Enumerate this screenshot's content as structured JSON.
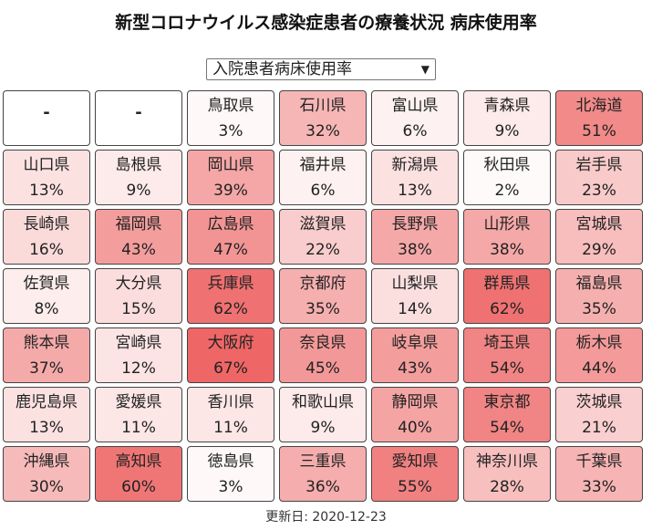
{
  "title": "新型コロナウイルス感染症患者の療養状況 病床使用率",
  "select": {
    "selected": "入院患者病床使用率"
  },
  "updated": "更新日: 2020-12-23",
  "cells": [
    {
      "name": "-",
      "pct": "",
      "value": null
    },
    {
      "name": "-",
      "pct": "",
      "value": null
    },
    {
      "name": "鳥取県",
      "pct": "3%",
      "value": 3
    },
    {
      "name": "石川県",
      "pct": "32%",
      "value": 32
    },
    {
      "name": "富山県",
      "pct": "6%",
      "value": 6
    },
    {
      "name": "青森県",
      "pct": "9%",
      "value": 9
    },
    {
      "name": "北海道",
      "pct": "51%",
      "value": 51
    },
    {
      "name": "山口県",
      "pct": "13%",
      "value": 13
    },
    {
      "name": "島根県",
      "pct": "9%",
      "value": 9
    },
    {
      "name": "岡山県",
      "pct": "39%",
      "value": 39
    },
    {
      "name": "福井県",
      "pct": "6%",
      "value": 6
    },
    {
      "name": "新潟県",
      "pct": "13%",
      "value": 13
    },
    {
      "name": "秋田県",
      "pct": "2%",
      "value": 2
    },
    {
      "name": "岩手県",
      "pct": "23%",
      "value": 23
    },
    {
      "name": "長崎県",
      "pct": "16%",
      "value": 16
    },
    {
      "name": "福岡県",
      "pct": "43%",
      "value": 43
    },
    {
      "name": "広島県",
      "pct": "47%",
      "value": 47
    },
    {
      "name": "滋賀県",
      "pct": "22%",
      "value": 22
    },
    {
      "name": "長野県",
      "pct": "38%",
      "value": 38
    },
    {
      "name": "山形県",
      "pct": "38%",
      "value": 38
    },
    {
      "name": "宮城県",
      "pct": "29%",
      "value": 29
    },
    {
      "name": "佐賀県",
      "pct": "8%",
      "value": 8
    },
    {
      "name": "大分県",
      "pct": "15%",
      "value": 15
    },
    {
      "name": "兵庫県",
      "pct": "62%",
      "value": 62
    },
    {
      "name": "京都府",
      "pct": "35%",
      "value": 35
    },
    {
      "name": "山梨県",
      "pct": "14%",
      "value": 14
    },
    {
      "name": "群馬県",
      "pct": "62%",
      "value": 62
    },
    {
      "name": "福島県",
      "pct": "35%",
      "value": 35
    },
    {
      "name": "熊本県",
      "pct": "37%",
      "value": 37
    },
    {
      "name": "宮崎県",
      "pct": "12%",
      "value": 12
    },
    {
      "name": "大阪府",
      "pct": "67%",
      "value": 67
    },
    {
      "name": "奈良県",
      "pct": "45%",
      "value": 45
    },
    {
      "name": "岐阜県",
      "pct": "43%",
      "value": 43
    },
    {
      "name": "埼玉県",
      "pct": "54%",
      "value": 54
    },
    {
      "name": "栃木県",
      "pct": "44%",
      "value": 44
    },
    {
      "name": "鹿児島県",
      "pct": "13%",
      "value": 13
    },
    {
      "name": "愛媛県",
      "pct": "11%",
      "value": 11
    },
    {
      "name": "香川県",
      "pct": "11%",
      "value": 11
    },
    {
      "name": "和歌山県",
      "pct": "9%",
      "value": 9
    },
    {
      "name": "静岡県",
      "pct": "40%",
      "value": 40
    },
    {
      "name": "東京都",
      "pct": "54%",
      "value": 54
    },
    {
      "name": "茨城県",
      "pct": "21%",
      "value": 21
    },
    {
      "name": "沖縄県",
      "pct": "30%",
      "value": 30
    },
    {
      "name": "高知県",
      "pct": "60%",
      "value": 60
    },
    {
      "name": "徳島県",
      "pct": "3%",
      "value": 3
    },
    {
      "name": "三重県",
      "pct": "36%",
      "value": 36
    },
    {
      "name": "愛知県",
      "pct": "55%",
      "value": 55
    },
    {
      "name": "神奈川県",
      "pct": "28%",
      "value": 28
    },
    {
      "name": "千葉県",
      "pct": "33%",
      "value": 33
    }
  ]
}
